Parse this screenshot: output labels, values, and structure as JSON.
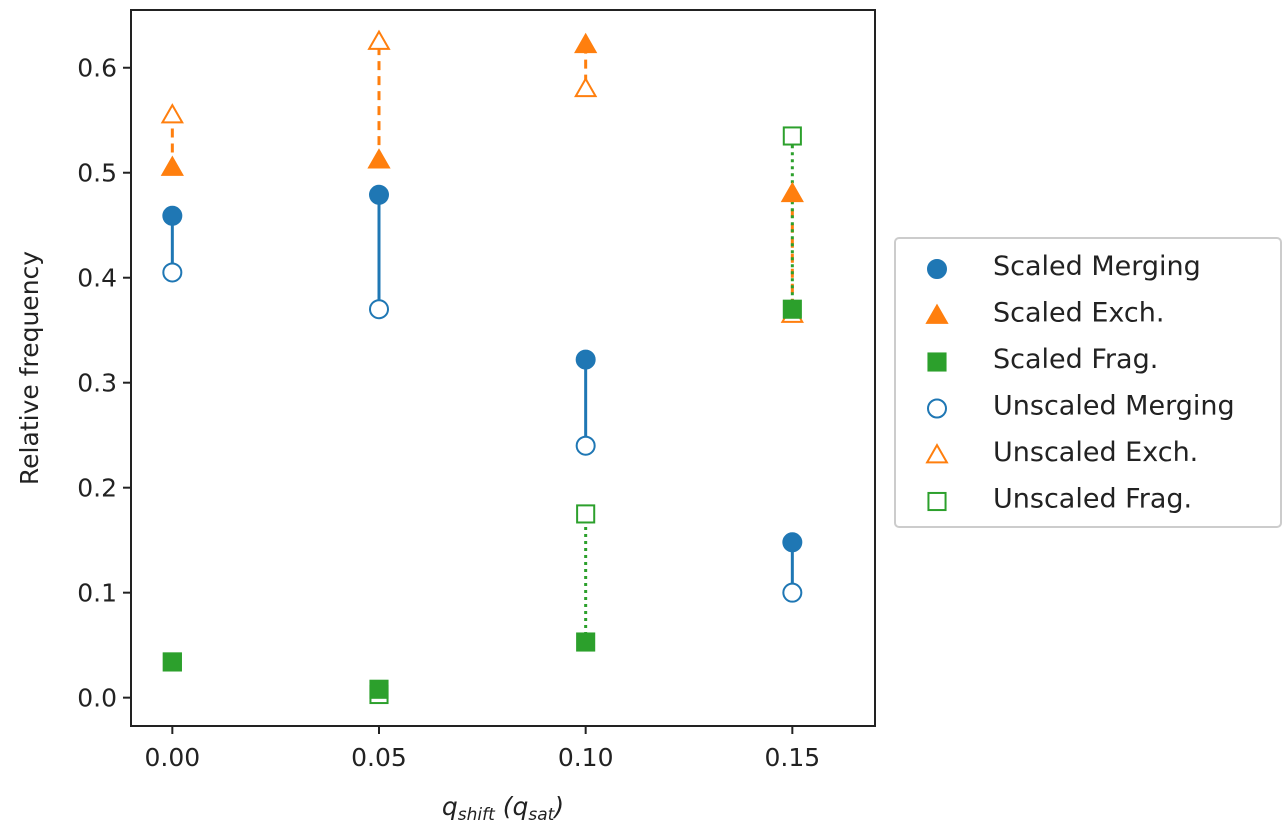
{
  "chart_data": {
    "type": "scatter",
    "x": [
      0.0,
      0.05,
      0.1,
      0.15
    ],
    "xticks": [
      "0.00",
      "0.05",
      "0.10",
      "0.15"
    ],
    "yticks": [
      "0.0",
      "0.1",
      "0.2",
      "0.3",
      "0.4",
      "0.5",
      "0.6"
    ],
    "xlim": [
      -0.01,
      0.17
    ],
    "ylim": [
      -0.027,
      0.655
    ],
    "xlabel_main": "q",
    "xlabel_sub": "shift",
    "xlabel_paren_main": "q",
    "xlabel_paren_sub": "sat",
    "ylabel": "Relative frequency",
    "grid": false,
    "legend_placement": "outside-right",
    "colors": {
      "merging": "#1f77b4",
      "exch": "#ff7f0e",
      "frag": "#2ca02c"
    },
    "series": [
      {
        "name": "Scaled Merging",
        "group": "merging",
        "marker": "circle",
        "filled": true,
        "values": [
          0.459,
          0.479,
          0.322,
          0.148
        ]
      },
      {
        "name": "Scaled Exch.",
        "group": "exch",
        "marker": "triangle",
        "filled": true,
        "values": [
          0.505,
          0.512,
          0.622,
          0.48
        ]
      },
      {
        "name": "Scaled Frag.",
        "group": "frag",
        "marker": "square",
        "filled": true,
        "values": [
          0.034,
          0.008,
          0.053,
          0.37
        ]
      },
      {
        "name": "Unscaled Merging",
        "group": "merging",
        "marker": "circle",
        "filled": false,
        "values": [
          0.405,
          0.37,
          0.24,
          0.1
        ]
      },
      {
        "name": "Unscaled Exch.",
        "group": "exch",
        "marker": "triangle",
        "filled": false,
        "values": [
          0.555,
          0.625,
          0.58,
          0.365
        ]
      },
      {
        "name": "Unscaled Frag.",
        "group": "frag",
        "marker": "square",
        "filled": false,
        "values": [
          0.034,
          0.003,
          0.175,
          0.535
        ]
      }
    ],
    "connectors": [
      {
        "group": "merging",
        "style": "solid"
      },
      {
        "group": "exch",
        "style": "dashed"
      },
      {
        "group": "frag",
        "style": "dotted"
      }
    ]
  }
}
